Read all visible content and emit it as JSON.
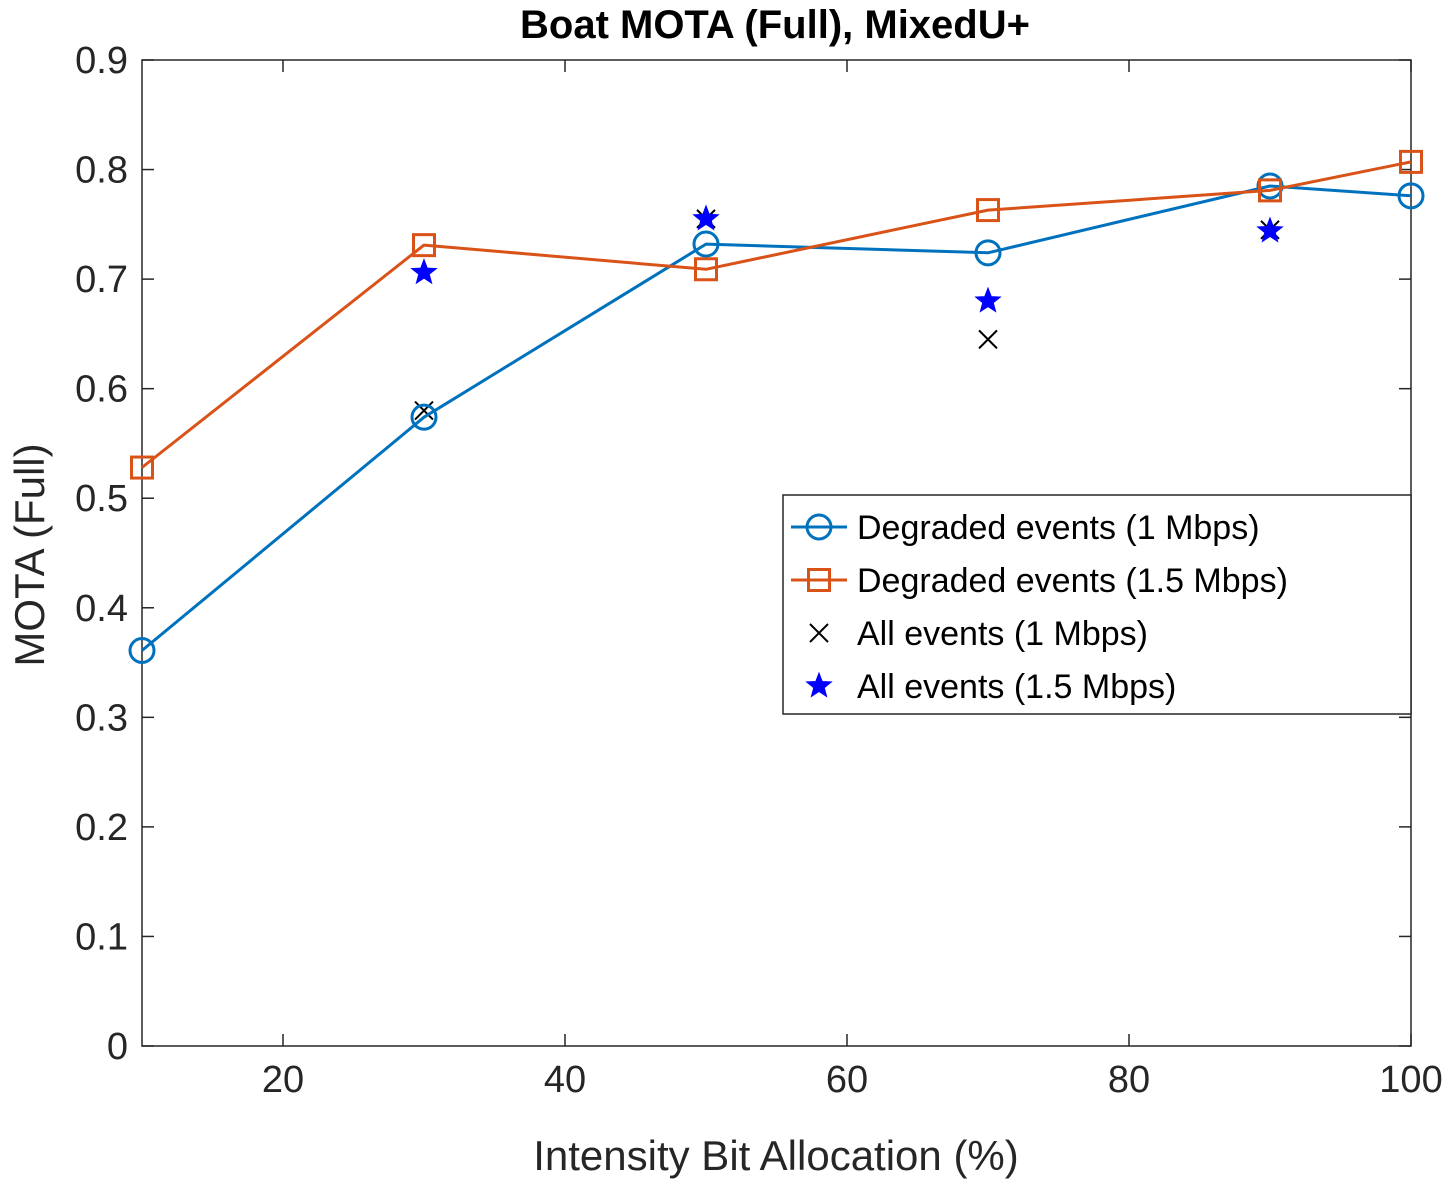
{
  "chart_data": {
    "type": "line",
    "title": "Boat MOTA (Full), MixedU+",
    "xlabel": "Intensity Bit Allocation (%)",
    "ylabel": "MOTA (Full)",
    "xlim": [
      10,
      100
    ],
    "ylim": [
      0,
      0.9
    ],
    "xticks": [
      "20",
      "40",
      "60",
      "80",
      "100"
    ],
    "yticks": [
      "0",
      "0.1",
      "0.2",
      "0.3",
      "0.4",
      "0.5",
      "0.6",
      "0.7",
      "0.8",
      "0.9"
    ],
    "grid": false,
    "legend_position": "center-right",
    "series": [
      {
        "name": "Degraded events (1 Mbps)",
        "style": "line-circle",
        "color": "#0072BD",
        "x": [
          10,
          30,
          50,
          70,
          90,
          100
        ],
        "values": [
          0.361,
          0.574,
          0.732,
          0.724,
          0.785,
          0.776
        ]
      },
      {
        "name": "Degraded events (1.5 Mbps)",
        "style": "line-square",
        "color": "#D95319",
        "x": [
          10,
          30,
          50,
          70,
          90,
          100
        ],
        "values": [
          0.528,
          0.731,
          0.709,
          0.763,
          0.781,
          0.807
        ]
      },
      {
        "name": "All events (1 Mbps)",
        "style": "x-marker",
        "color": "#000000",
        "x": [
          30,
          50,
          70,
          90
        ],
        "values": [
          0.58,
          0.755,
          0.645,
          0.745
        ]
      },
      {
        "name": "All events (1.5 Mbps)",
        "style": "star-marker",
        "color": "#0000FF",
        "x": [
          30,
          50,
          70,
          90
        ],
        "values": [
          0.706,
          0.755,
          0.68,
          0.744
        ]
      }
    ]
  }
}
